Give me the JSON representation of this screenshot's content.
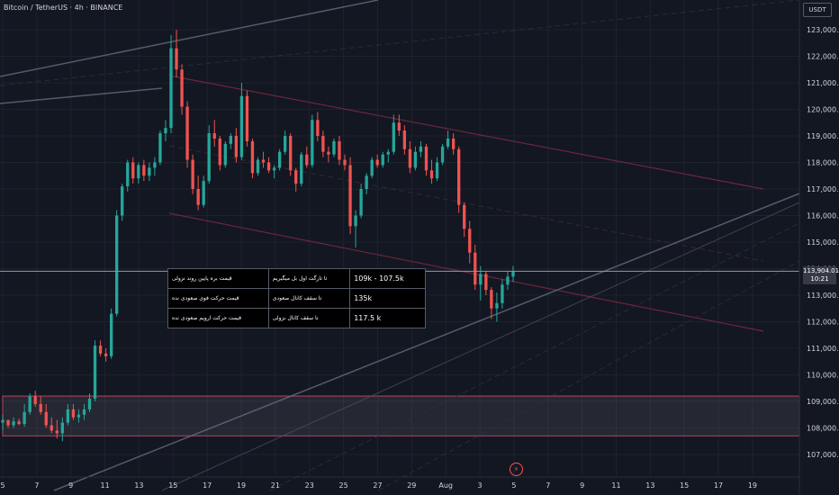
{
  "header": {
    "title": "Bitcoin / TetherUS · 4h · BINANCE"
  },
  "currency_label": "USDT",
  "last_price": {
    "value": "113,904.01",
    "countdown": "10:21",
    "level": 113904.01
  },
  "note_table": {
    "rows": [
      {
        "label": "قیمت بره پایین روند نزولی",
        "target": "تا تارگت اول بل میگیریم",
        "value": "109k - 107.5k"
      },
      {
        "label": "قیمت حرکت فوی صعودی نده",
        "target": "تا سقف کانال صعودی",
        "value": "135k"
      },
      {
        "label": "قیمت حرکت ارویم صعودی نده",
        "target": "تا سقف کانال نزولی",
        "value": "117.5 k"
      }
    ]
  },
  "chart_data": {
    "type": "candlestick",
    "title": "Bitcoin / TetherUS · 4h · BINANCE",
    "symbol": "BTCUSDT",
    "interval": "4h",
    "exchange": "BINANCE",
    "ylim": [
      106500,
      123500
    ],
    "y_ticks": [
      "107,000.00",
      "108,000.00",
      "109,000.00",
      "110,000.00",
      "111,000.00",
      "112,000.00",
      "113,000.00",
      "114,000.00",
      "115,000.00",
      "116,000.00",
      "117,000.00",
      "118,000.00",
      "119,000.00",
      "120,000.00",
      "121,000.00",
      "122,000.00",
      "123,000.00"
    ],
    "x_ticks": [
      "5",
      "7",
      "9",
      "11",
      "13",
      "15",
      "17",
      "19",
      "21",
      "23",
      "25",
      "27",
      "29",
      "Aug",
      "3",
      "5",
      "7",
      "9",
      "11",
      "13",
      "15",
      "17",
      "19"
    ],
    "demand_zone": [
      107700,
      109200
    ],
    "colors": {
      "up": "#26a69a",
      "down": "#ef5350",
      "zone": "#9c3e56",
      "channel": "#8a2a45",
      "grid": "#1e222d",
      "trend": "#6a7180"
    },
    "candles": [
      [
        108200,
        108500,
        107900,
        108300
      ],
      [
        108300,
        108300,
        108000,
        108100
      ],
      [
        108100,
        108400,
        108000,
        108250
      ],
      [
        108250,
        108350,
        108100,
        108150
      ],
      [
        108150,
        108900,
        108050,
        108600
      ],
      [
        108600,
        109300,
        108500,
        109200
      ],
      [
        109200,
        109400,
        108800,
        108900
      ],
      [
        108900,
        109200,
        108500,
        108600
      ],
      [
        108600,
        108900,
        108000,
        108100
      ],
      [
        108100,
        108400,
        107800,
        107900
      ],
      [
        107900,
        108300,
        107600,
        107800
      ],
      [
        107800,
        108400,
        107500,
        108200
      ],
      [
        108200,
        108900,
        108100,
        108700
      ],
      [
        108700,
        108900,
        108300,
        108400
      ],
      [
        108400,
        108700,
        108200,
        108500
      ],
      [
        108500,
        108900,
        108300,
        108700
      ],
      [
        108700,
        109300,
        108600,
        109100
      ],
      [
        109100,
        111300,
        109000,
        111100
      ],
      [
        111100,
        111300,
        110700,
        110800
      ],
      [
        110800,
        111000,
        110500,
        110700
      ],
      [
        110700,
        112500,
        110600,
        112300
      ],
      [
        112300,
        116200,
        112200,
        116000
      ],
      [
        116000,
        117200,
        115800,
        117100
      ],
      [
        117100,
        118100,
        116900,
        118000
      ],
      [
        118000,
        118200,
        117200,
        117400
      ],
      [
        117400,
        118000,
        117200,
        117900
      ],
      [
        117900,
        118100,
        117300,
        117500
      ],
      [
        117500,
        118000,
        117300,
        117800
      ],
      [
        117800,
        118200,
        117500,
        118000
      ],
      [
        118000,
        119200,
        117900,
        119100
      ],
      [
        119100,
        119600,
        118800,
        119300
      ],
      [
        119300,
        122800,
        119100,
        122300
      ],
      [
        122300,
        123000,
        121200,
        121500
      ],
      [
        121500,
        121700,
        119800,
        120100
      ],
      [
        120100,
        120300,
        117800,
        118100
      ],
      [
        118100,
        118300,
        116800,
        117000
      ],
      [
        117000,
        117500,
        116200,
        116400
      ],
      [
        116400,
        117500,
        116300,
        117300
      ],
      [
        117300,
        119400,
        117200,
        119100
      ],
      [
        119100,
        119600,
        118600,
        118900
      ],
      [
        118900,
        119000,
        117700,
        117900
      ],
      [
        117900,
        118800,
        117800,
        118700
      ],
      [
        118700,
        119100,
        118500,
        119000
      ],
      [
        119000,
        119300,
        118000,
        118200
      ],
      [
        118200,
        121000,
        118100,
        120500
      ],
      [
        120500,
        120700,
        118600,
        118800
      ],
      [
        118800,
        118900,
        117400,
        117600
      ],
      [
        117600,
        118200,
        117500,
        118100
      ],
      [
        118100,
        118400,
        117800,
        118000
      ],
      [
        118000,
        118200,
        117600,
        117700
      ],
      [
        117700,
        117900,
        117400,
        117800
      ],
      [
        117800,
        118500,
        117700,
        118400
      ],
      [
        118400,
        119200,
        118300,
        119000
      ],
      [
        119000,
        119100,
        117500,
        117700
      ],
      [
        117700,
        117800,
        116900,
        117200
      ],
      [
        117200,
        118400,
        117100,
        118300
      ],
      [
        118300,
        118600,
        117800,
        117900
      ],
      [
        117900,
        119800,
        117800,
        119600
      ],
      [
        119600,
        119900,
        118800,
        119000
      ],
      [
        119000,
        119200,
        118200,
        118400
      ],
      [
        118400,
        118600,
        118000,
        118300
      ],
      [
        118300,
        118900,
        118200,
        118800
      ],
      [
        118800,
        119000,
        117900,
        118100
      ],
      [
        118100,
        118300,
        117700,
        117900
      ],
      [
        117900,
        118200,
        115300,
        115600
      ],
      [
        115600,
        116200,
        114800,
        116000
      ],
      [
        116000,
        117200,
        115900,
        117000
      ],
      [
        117000,
        117600,
        116800,
        117500
      ],
      [
        117500,
        118200,
        117400,
        118100
      ],
      [
        118100,
        118300,
        117800,
        117900
      ],
      [
        117900,
        118400,
        117800,
        118300
      ],
      [
        118300,
        118500,
        118000,
        118400
      ],
      [
        118400,
        119800,
        118300,
        119500
      ],
      [
        119500,
        119800,
        119000,
        119200
      ],
      [
        119200,
        119400,
        118300,
        118500
      ],
      [
        118500,
        118800,
        117600,
        117800
      ],
      [
        117800,
        118600,
        117700,
        118400
      ],
      [
        118400,
        118800,
        118200,
        118600
      ],
      [
        118600,
        118700,
        117500,
        117700
      ],
      [
        117700,
        118100,
        117200,
        117400
      ],
      [
        117400,
        118200,
        117300,
        118000
      ],
      [
        118000,
        118700,
        117900,
        118600
      ],
      [
        118600,
        119200,
        118500,
        118900
      ],
      [
        118900,
        119100,
        118300,
        118500
      ],
      [
        118500,
        118600,
        116100,
        116400
      ],
      [
        116400,
        116500,
        115200,
        115500
      ],
      [
        115500,
        115800,
        114200,
        114600
      ],
      [
        114600,
        114900,
        113200,
        113400
      ],
      [
        113400,
        114100,
        112800,
        113800
      ],
      [
        113800,
        113900,
        113000,
        113200
      ],
      [
        113200,
        113300,
        112100,
        112500
      ],
      [
        112500,
        113100,
        112000,
        112700
      ],
      [
        112700,
        113600,
        112500,
        113400
      ],
      [
        113400,
        113900,
        113200,
        113700
      ],
      [
        113700,
        114100,
        113500,
        113904
      ]
    ]
  }
}
